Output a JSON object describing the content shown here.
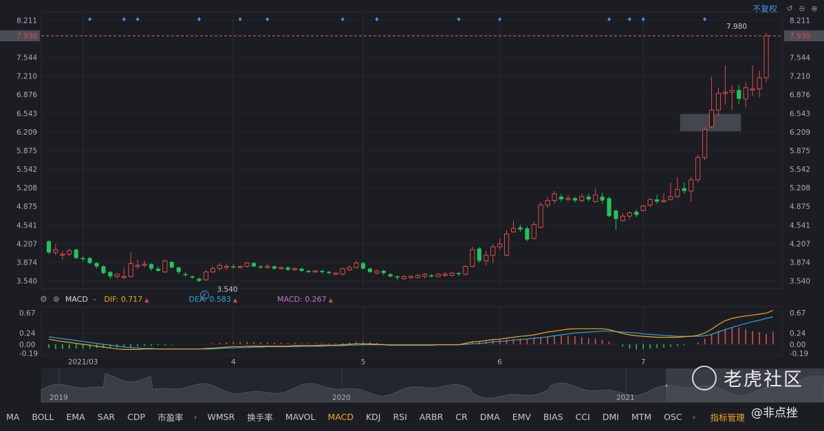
{
  "toolbar": {
    "mode_label": "不复权",
    "icons": [
      "undo-icon",
      "zoom-out-icon",
      "zoom-in-icon"
    ]
  },
  "colors": {
    "up": "#e04c4c",
    "down": "#22c35a",
    "dif": "#f5a623",
    "dea": "#2fa5d9",
    "macd": "#d46bd4",
    "dash": "#d96a6a",
    "marker": "#4a90e2"
  },
  "chart_data": [
    {
      "type": "candlestick",
      "y_ticks": [
        "8.211",
        "7.930",
        "7.544",
        "7.210",
        "6.876",
        "6.543",
        "6.209",
        "5.875",
        "5.542",
        "5.208",
        "4.875",
        "4.541",
        "4.207",
        "3.874",
        "3.540"
      ],
      "ylim": [
        3.4,
        8.35
      ],
      "x_labels": [
        {
          "label": "2021/03",
          "index": 5
        },
        {
          "label": "4",
          "index": 27
        },
        {
          "label": "5",
          "index": 46
        },
        {
          "label": "6",
          "index": 66
        },
        {
          "label": "7",
          "index": 87
        }
      ],
      "current_price": "7.930",
      "high_annotation": "7.980",
      "low_annotation": "3.540",
      "event_marker": "E",
      "marker_indices": [
        6,
        11,
        13,
        22,
        28,
        32,
        43,
        48,
        60,
        66,
        82,
        85,
        87,
        96
      ],
      "candles": [
        [
          4.25,
          4.05,
          4.27,
          4.02
        ],
        [
          4.05,
          4.1,
          4.2,
          4.0
        ],
        [
          4.0,
          4.02,
          4.08,
          3.92
        ],
        [
          4.02,
          4.08,
          4.12,
          3.98
        ],
        [
          4.1,
          3.95,
          4.12,
          3.93
        ],
        [
          3.95,
          3.93,
          3.98,
          3.88
        ],
        [
          3.95,
          3.86,
          3.97,
          3.84
        ],
        [
          3.86,
          3.8,
          3.88,
          3.76
        ],
        [
          3.8,
          3.68,
          3.82,
          3.66
        ],
        [
          3.7,
          3.62,
          3.72,
          3.58
        ],
        [
          3.62,
          3.66,
          3.68,
          3.58
        ],
        [
          3.6,
          3.62,
          3.78,
          3.58
        ],
        [
          3.62,
          3.85,
          4.05,
          3.6
        ],
        [
          3.8,
          3.82,
          3.92,
          3.75
        ],
        [
          3.82,
          3.84,
          3.9,
          3.78
        ],
        [
          3.84,
          3.76,
          3.86,
          3.72
        ],
        [
          3.76,
          3.72,
          3.8,
          3.7
        ],
        [
          3.7,
          3.9,
          3.92,
          3.68
        ],
        [
          3.88,
          3.78,
          3.9,
          3.76
        ],
        [
          3.78,
          3.7,
          3.8,
          3.66
        ],
        [
          3.66,
          3.64,
          3.7,
          3.62
        ],
        [
          3.62,
          3.6,
          3.64,
          3.58
        ],
        [
          3.58,
          3.54,
          3.6,
          3.52
        ],
        [
          3.56,
          3.7,
          3.74,
          3.54
        ],
        [
          3.7,
          3.76,
          3.8,
          3.68
        ],
        [
          3.76,
          3.82,
          3.86,
          3.72
        ],
        [
          3.78,
          3.8,
          3.84,
          3.74
        ],
        [
          3.8,
          3.78,
          3.84,
          3.76
        ],
        [
          3.78,
          3.8,
          3.82,
          3.76
        ],
        [
          3.8,
          3.86,
          3.88,
          3.78
        ],
        [
          3.86,
          3.8,
          3.88,
          3.78
        ],
        [
          3.8,
          3.78,
          3.82,
          3.76
        ],
        [
          3.78,
          3.8,
          3.84,
          3.76
        ],
        [
          3.8,
          3.76,
          3.82,
          3.74
        ],
        [
          3.76,
          3.78,
          3.8,
          3.74
        ],
        [
          3.78,
          3.74,
          3.8,
          3.72
        ],
        [
          3.74,
          3.76,
          3.78,
          3.72
        ],
        [
          3.76,
          3.72,
          3.78,
          3.7
        ],
        [
          3.72,
          3.7,
          3.74,
          3.68
        ],
        [
          3.7,
          3.72,
          3.74,
          3.68
        ],
        [
          3.72,
          3.7,
          3.74,
          3.66
        ],
        [
          3.7,
          3.68,
          3.72,
          3.66
        ],
        [
          3.66,
          3.68,
          3.7,
          3.64
        ],
        [
          3.66,
          3.76,
          3.78,
          3.64
        ],
        [
          3.74,
          3.78,
          3.82,
          3.72
        ],
        [
          3.78,
          3.86,
          3.9,
          3.76
        ],
        [
          3.86,
          3.76,
          3.88,
          3.74
        ],
        [
          3.76,
          3.7,
          3.78,
          3.68
        ],
        [
          3.68,
          3.72,
          3.74,
          3.66
        ],
        [
          3.72,
          3.68,
          3.74,
          3.64
        ],
        [
          3.66,
          3.62,
          3.68,
          3.6
        ],
        [
          3.62,
          3.6,
          3.64,
          3.56
        ],
        [
          3.58,
          3.62,
          3.64,
          3.56
        ],
        [
          3.6,
          3.62,
          3.64,
          3.58
        ],
        [
          3.6,
          3.64,
          3.66,
          3.58
        ],
        [
          3.62,
          3.66,
          3.68,
          3.58
        ],
        [
          3.64,
          3.62,
          3.66,
          3.6
        ],
        [
          3.62,
          3.66,
          3.68,
          3.6
        ],
        [
          3.64,
          3.66,
          3.7,
          3.62
        ],
        [
          3.64,
          3.68,
          3.7,
          3.62
        ],
        [
          3.68,
          3.66,
          3.7,
          3.62
        ],
        [
          3.66,
          3.8,
          3.82,
          3.64
        ],
        [
          3.8,
          4.1,
          4.15,
          3.78
        ],
        [
          4.12,
          3.9,
          4.15,
          3.86
        ],
        [
          3.9,
          4.0,
          4.08,
          3.82
        ],
        [
          4.0,
          4.15,
          4.2,
          3.86
        ],
        [
          4.15,
          4.2,
          4.3,
          4.1
        ],
        [
          4.0,
          4.38,
          4.45,
          3.98
        ],
        [
          4.42,
          4.48,
          4.62,
          4.4
        ],
        [
          4.5,
          4.46,
          4.55,
          4.42
        ],
        [
          4.48,
          4.28,
          4.52,
          4.25
        ],
        [
          4.3,
          4.55,
          4.6,
          4.28
        ],
        [
          4.5,
          4.9,
          4.95,
          4.48
        ],
        [
          4.9,
          4.98,
          5.05,
          4.85
        ],
        [
          4.98,
          5.1,
          5.15,
          4.92
        ],
        [
          5.05,
          5.0,
          5.1,
          4.95
        ],
        [
          5.0,
          5.02,
          5.08,
          4.96
        ],
        [
          5.02,
          4.98,
          5.05,
          4.94
        ],
        [
          4.98,
          5.05,
          5.1,
          4.94
        ],
        [
          5.05,
          5.0,
          5.1,
          4.96
        ],
        [
          4.96,
          5.08,
          5.2,
          4.94
        ],
        [
          5.05,
          4.98,
          5.12,
          4.92
        ],
        [
          5.02,
          4.7,
          5.05,
          4.68
        ],
        [
          4.8,
          4.65,
          4.82,
          4.45
        ],
        [
          4.62,
          4.7,
          4.76,
          4.6
        ],
        [
          4.7,
          4.76,
          4.78,
          4.64
        ],
        [
          4.78,
          4.72,
          4.82,
          4.68
        ],
        [
          4.8,
          4.88,
          4.9,
          4.78
        ],
        [
          4.9,
          5.0,
          5.02,
          4.86
        ],
        [
          5.0,
          4.96,
          5.08,
          4.92
        ],
        [
          4.96,
          4.98,
          5.1,
          4.94
        ],
        [
          5.0,
          5.05,
          5.3,
          4.98
        ],
        [
          5.05,
          5.18,
          5.4,
          5.02
        ],
        [
          5.2,
          5.15,
          5.3,
          5.1
        ],
        [
          5.15,
          5.35,
          5.4,
          4.95
        ],
        [
          5.35,
          5.75,
          5.8,
          5.3
        ],
        [
          5.75,
          6.25,
          6.3,
          5.7
        ],
        [
          6.3,
          6.6,
          7.2,
          6.28
        ],
        [
          6.6,
          6.9,
          7.0,
          6.5
        ],
        [
          6.9,
          6.92,
          7.4,
          6.7
        ],
        [
          6.92,
          6.95,
          7.05,
          6.6
        ],
        [
          6.96,
          6.8,
          7.05,
          6.7
        ],
        [
          6.8,
          7.0,
          7.1,
          6.65
        ],
        [
          6.96,
          6.98,
          7.4,
          6.85
        ],
        [
          6.98,
          7.18,
          7.3,
          6.82
        ],
        [
          7.18,
          7.93,
          7.98,
          7.1
        ]
      ],
      "zone": {
        "from_index": 93,
        "to_index": 101,
        "low": 6.22,
        "high": 6.53
      }
    },
    {
      "type": "macd",
      "title": "MACD",
      "dif_label": "DIF: 0.717",
      "dea_label": "DEA: 0.583",
      "macd_label": "MACD: 0.267",
      "y_ticks": [
        "0.67",
        "0.24",
        "0.00",
        "-0.19"
      ],
      "ylim": [
        -0.25,
        0.8
      ],
      "dif": [
        0.11,
        0.08,
        0.06,
        0.04,
        0.02,
        0.0,
        -0.02,
        -0.04,
        -0.06,
        -0.08,
        -0.1,
        -0.11,
        -0.11,
        -0.11,
        -0.1,
        -0.1,
        -0.1,
        -0.1,
        -0.1,
        -0.1,
        -0.1,
        -0.1,
        -0.1,
        -0.09,
        -0.08,
        -0.07,
        -0.06,
        -0.05,
        -0.05,
        -0.04,
        -0.04,
        -0.04,
        -0.04,
        -0.04,
        -0.04,
        -0.04,
        -0.03,
        -0.03,
        -0.03,
        -0.03,
        -0.02,
        -0.02,
        -0.02,
        -0.01,
        0.0,
        0.01,
        0.01,
        0.01,
        0.0,
        -0.01,
        -0.02,
        -0.02,
        -0.02,
        -0.02,
        -0.02,
        -0.02,
        -0.02,
        -0.01,
        -0.01,
        -0.01,
        -0.01,
        0.02,
        0.05,
        0.06,
        0.08,
        0.1,
        0.11,
        0.13,
        0.15,
        0.17,
        0.18,
        0.2,
        0.23,
        0.26,
        0.28,
        0.3,
        0.32,
        0.33,
        0.33,
        0.33,
        0.33,
        0.33,
        0.31,
        0.27,
        0.23,
        0.2,
        0.18,
        0.17,
        0.16,
        0.15,
        0.15,
        0.15,
        0.15,
        0.16,
        0.17,
        0.19,
        0.24,
        0.32,
        0.42,
        0.5,
        0.55,
        0.58,
        0.6,
        0.62,
        0.64,
        0.66,
        0.72
      ],
      "dea": [
        0.16,
        0.14,
        0.12,
        0.1,
        0.08,
        0.06,
        0.04,
        0.02,
        0.0,
        -0.02,
        -0.04,
        -0.06,
        -0.07,
        -0.08,
        -0.09,
        -0.09,
        -0.1,
        -0.1,
        -0.1,
        -0.1,
        -0.1,
        -0.1,
        -0.1,
        -0.1,
        -0.1,
        -0.09,
        -0.08,
        -0.08,
        -0.07,
        -0.07,
        -0.06,
        -0.06,
        -0.05,
        -0.05,
        -0.05,
        -0.05,
        -0.05,
        -0.04,
        -0.04,
        -0.04,
        -0.04,
        -0.03,
        -0.03,
        -0.03,
        -0.02,
        -0.02,
        -0.01,
        -0.01,
        -0.01,
        -0.01,
        -0.01,
        -0.01,
        -0.01,
        -0.01,
        -0.01,
        -0.01,
        -0.01,
        -0.01,
        -0.01,
        -0.01,
        -0.01,
        0.0,
        0.01,
        0.02,
        0.03,
        0.05,
        0.06,
        0.07,
        0.09,
        0.1,
        0.11,
        0.13,
        0.14,
        0.16,
        0.18,
        0.2,
        0.22,
        0.24,
        0.25,
        0.26,
        0.27,
        0.28,
        0.28,
        0.27,
        0.26,
        0.25,
        0.24,
        0.22,
        0.21,
        0.2,
        0.19,
        0.18,
        0.17,
        0.17,
        0.17,
        0.17,
        0.18,
        0.21,
        0.26,
        0.31,
        0.36,
        0.4,
        0.44,
        0.48,
        0.51,
        0.55,
        0.58
      ],
      "hist": [
        -0.08,
        -0.1,
        -0.1,
        -0.09,
        -0.09,
        -0.09,
        -0.09,
        -0.08,
        -0.08,
        -0.07,
        -0.07,
        -0.06,
        -0.06,
        -0.05,
        -0.04,
        -0.03,
        -0.02,
        -0.02,
        -0.01,
        0.0,
        0.0,
        0.0,
        0.0,
        0.01,
        0.02,
        0.03,
        0.04,
        0.05,
        0.05,
        0.05,
        0.05,
        0.04,
        0.04,
        0.03,
        0.03,
        0.03,
        0.03,
        0.02,
        0.02,
        0.02,
        0.02,
        0.02,
        0.02,
        0.03,
        0.04,
        0.05,
        0.05,
        0.04,
        0.03,
        0.01,
        -0.01,
        -0.02,
        -0.02,
        -0.02,
        -0.02,
        -0.02,
        -0.02,
        0.0,
        0.0,
        0.0,
        0.0,
        0.03,
        0.06,
        0.07,
        0.09,
        0.1,
        0.1,
        0.11,
        0.11,
        0.12,
        0.12,
        0.13,
        0.15,
        0.16,
        0.17,
        0.18,
        0.18,
        0.17,
        0.15,
        0.13,
        0.12,
        0.1,
        0.06,
        0.0,
        -0.05,
        -0.09,
        -0.11,
        -0.1,
        -0.09,
        -0.08,
        -0.07,
        -0.06,
        -0.04,
        -0.02,
        0.0,
        0.04,
        0.12,
        0.21,
        0.29,
        0.33,
        0.36,
        0.36,
        0.32,
        0.28,
        0.26,
        0.22,
        0.27
      ]
    }
  ],
  "navigator": {
    "year_labels": [
      "2019",
      "2020",
      "2021"
    ],
    "arrow": "‹"
  },
  "tabs": [
    "MA",
    "BOLL",
    "EMA",
    "SAR",
    "CDP",
    "市盈率",
    "WMSR",
    "换手率",
    "MAVOL",
    "MACD",
    "KDJ",
    "RSI",
    "ARBR",
    "CR",
    "DMA",
    "EMV",
    "BIAS",
    "CCI",
    "DMI",
    "MTM",
    "OSC"
  ],
  "active_tab": "MACD",
  "tab_more": "›",
  "manage_label": "指标管理",
  "watermark": {
    "brand": "老虎社区",
    "credit": "@非点挫"
  }
}
